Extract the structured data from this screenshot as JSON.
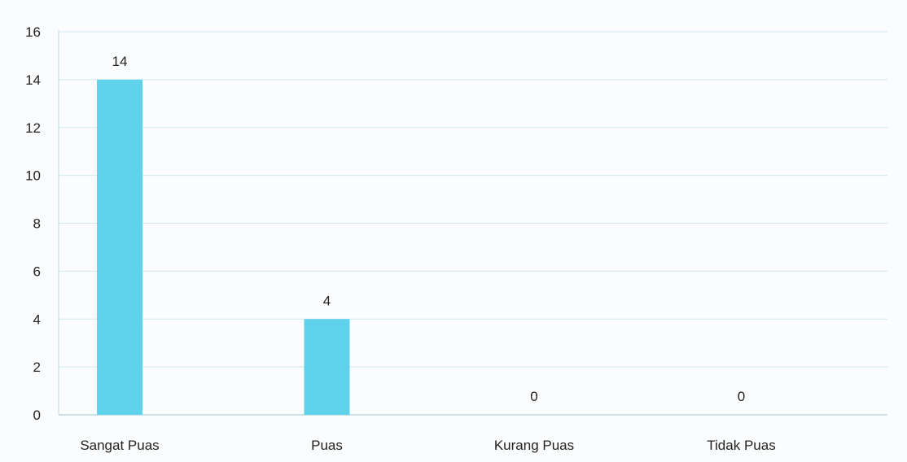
{
  "chart_data": {
    "type": "bar",
    "categories": [
      "Sangat Puas",
      "Puas",
      "Kurang Puas",
      "Tidak Puas"
    ],
    "values": [
      14,
      4,
      0,
      0
    ],
    "data_labels": [
      "14",
      "4",
      "0",
      "0"
    ],
    "title": "",
    "xlabel": "",
    "ylabel": "",
    "ylim": [
      0,
      16
    ],
    "yticks": [
      0,
      2,
      4,
      6,
      8,
      10,
      12,
      14,
      16
    ],
    "ytick_labels": [
      "0",
      "2",
      "4",
      "6",
      "8",
      "10",
      "12",
      "14",
      "16"
    ],
    "grid": true,
    "legend": "none",
    "colors": {
      "bar": "#5ed2ea",
      "grid": "#cfe9ee",
      "axis": "#b9d9df",
      "background": "#fafcfd"
    }
  }
}
